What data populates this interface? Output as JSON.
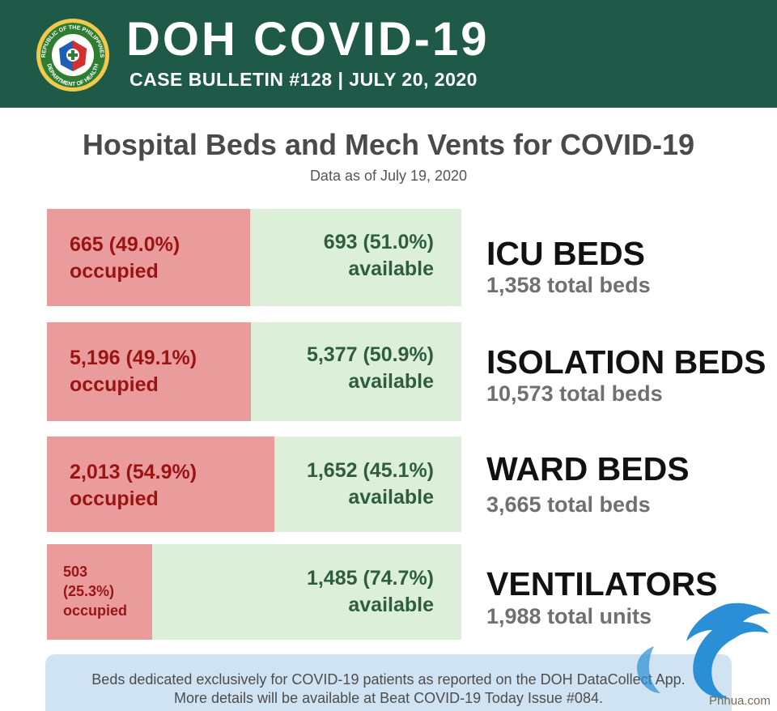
{
  "header": {
    "brand": "DOH COVID-19",
    "bulletin": "CASE BULLETIN #128 | JULY 20, 2020",
    "seal_text_top": "REPUBLIC OF THE PHILIPPINES",
    "seal_text_bottom": "DEPARTMENT OF HEALTH"
  },
  "title": "Hospital Beds and Mech Vents for COVID-19",
  "as_of": "Data as of July 19, 2020",
  "colors": {
    "header_bg": "#1f5a48",
    "occupied_bg": "#ea9c9c",
    "occupied_text": "#9b1414",
    "available_bg": "#dcefd8",
    "available_text": "#2f5e3c",
    "note_bg": "#cfe3f2"
  },
  "chart_data": {
    "type": "bar",
    "orientation": "horizontal",
    "stacked": true,
    "normalized": true,
    "categories": [
      "ICU BEDS",
      "ISOLATION BEDS",
      "WARD BEDS",
      "VENTILATORS"
    ],
    "series": [
      {
        "name": "occupied",
        "values": [
          665,
          5196,
          2013,
          503
        ],
        "percent": [
          49.0,
          49.1,
          54.9,
          25.3
        ]
      },
      {
        "name": "available",
        "values": [
          693,
          5377,
          1652,
          1485
        ],
        "percent": [
          51.0,
          50.9,
          45.1,
          74.7
        ]
      }
    ],
    "totals": [
      1358,
      10573,
      3665,
      1988
    ]
  },
  "rows": [
    {
      "occupied_line1": "665 (49.0%)",
      "occupied_line2": "occupied",
      "available_line1": "693 (51.0%)",
      "available_line2": "available",
      "category": "ICU BEDS",
      "total": "1,358 total beds"
    },
    {
      "occupied_line1": "5,196 (49.1%)",
      "occupied_line2": "occupied",
      "available_line1": "5,377 (50.9%)",
      "available_line2": "available",
      "category": "ISOLATION BEDS",
      "total": "10,573 total beds"
    },
    {
      "occupied_line1": "2,013 (54.9%)",
      "occupied_line2": "occupied",
      "available_line1": "1,652 (45.1%)",
      "available_line2": "available",
      "category": "WARD BEDS",
      "total": "3,665 total beds"
    },
    {
      "occupied_line1": "503",
      "occupied_line2": "(25.3%)",
      "occupied_line3": "occupied",
      "available_line1": "1,485 (74.7%)",
      "available_line2": "available",
      "category": "VENTILATORS",
      "total": "1,988 total units"
    }
  ],
  "footnote": {
    "line1": "Beds dedicated exclusively for COVID-19 patients as reported on the DOH DataCollect App.",
    "line2": "More details will be available at Beat COVID-19 Today Issue #084."
  },
  "watermark": {
    "text": "Phhua.com",
    "icon": "dragon-watermark-icon"
  }
}
